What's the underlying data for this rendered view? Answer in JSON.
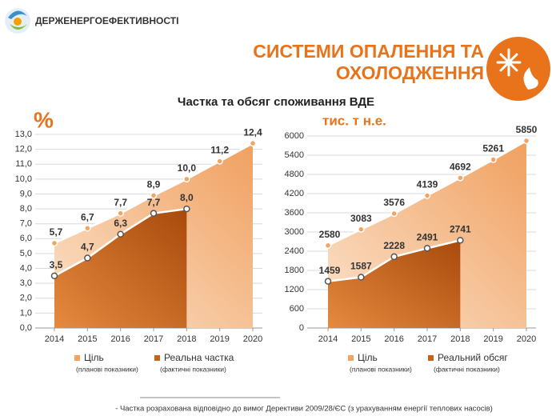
{
  "slide": {
    "org": "ДЕРЖЕНЕРГОЕФЕКТИВНОСТІ",
    "title_lines": [
      "СИСТЕМИ ОПАЛЕННЯ ТА",
      "ОХОЛОДЖЕННЯ"
    ],
    "chart_title": "Частка та обсяг споживання ВДЕ",
    "footnote": "- Частка розрахована відповідно до вимог Дерективи 2009/28/ЄС (з урахуванням енергії теплових насосів)"
  },
  "chart_data": [
    {
      "type": "area",
      "unit_label": "%",
      "categories": [
        "2014",
        "2015",
        "2016",
        "2017",
        "2018",
        "2019",
        "2020"
      ],
      "ylim": [
        0,
        13
      ],
      "yticks": [
        {
          "value": 0,
          "label": "0,0"
        },
        {
          "value": 1,
          "label": "1,0"
        },
        {
          "value": 2,
          "label": "2,0"
        },
        {
          "value": 3,
          "label": "3,0"
        },
        {
          "value": 4,
          "label": "4,0"
        },
        {
          "value": 5,
          "label": "5,0"
        },
        {
          "value": 6,
          "label": "6,0"
        },
        {
          "value": 7,
          "label": "7,0"
        },
        {
          "value": 8,
          "label": "8,0"
        },
        {
          "value": 9,
          "label": "9,0"
        },
        {
          "value": 10,
          "label": "10,0"
        },
        {
          "value": 11,
          "label": "11,0"
        },
        {
          "value": 12,
          "label": "12,0"
        },
        {
          "value": 13,
          "label": "13,0"
        }
      ],
      "grid": true,
      "series": [
        {
          "name": "Ціль",
          "note": "(планові показники)",
          "color": "#f4a460",
          "values": [
            5.7,
            6.7,
            7.7,
            8.9,
            10.0,
            11.2,
            12.4
          ],
          "value_labels": [
            "5,7",
            "6,7",
            "7,7",
            "8,9",
            "10,0",
            "11,2",
            "12,4"
          ]
        },
        {
          "name": "Реальна частка",
          "note": "(фактичні показники)",
          "color": "#c8621a",
          "values": [
            3.5,
            4.7,
            6.3,
            7.7,
            8.0,
            null,
            null
          ],
          "value_labels": [
            "3,5",
            "4,7",
            "6,3",
            "7,7",
            "8,0",
            null,
            null
          ]
        }
      ]
    },
    {
      "type": "area",
      "unit_label": "тис. т н.е.",
      "categories": [
        "2014",
        "2015",
        "2016",
        "2017",
        "2018",
        "2019",
        "2020"
      ],
      "ylim": [
        0,
        6000
      ],
      "yticks": [
        0,
        600,
        1200,
        1800,
        2400,
        3000,
        3600,
        4200,
        4800,
        5400,
        6000
      ],
      "grid": true,
      "series": [
        {
          "name": "Ціль",
          "note": "(планові показники)",
          "color": "#f4a460",
          "values": [
            2580,
            3083,
            3576,
            4139,
            4692,
            5261,
            5850
          ]
        },
        {
          "name": "Реальний обсяг",
          "note": "(фактичні показники)",
          "color": "#c8621a",
          "values": [
            1459,
            1587,
            2228,
            2491,
            2741,
            null,
            null
          ]
        }
      ]
    }
  ]
}
